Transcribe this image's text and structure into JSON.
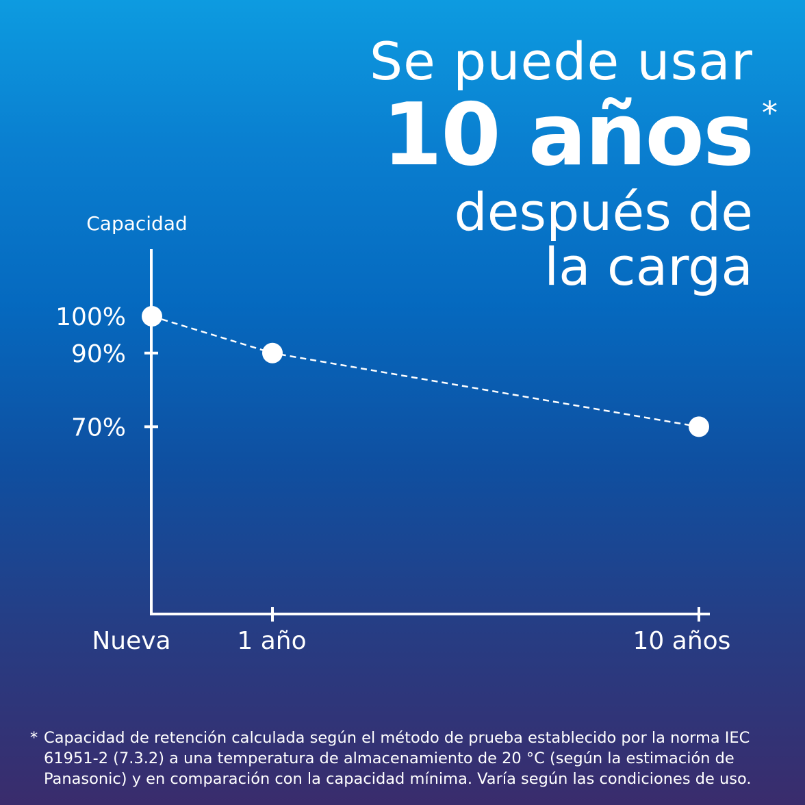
{
  "headline": {
    "line1": "Se puede usar",
    "line2": "10 años",
    "asterisk": "*",
    "line3": "después de",
    "line4": "la carga"
  },
  "chart_data": {
    "type": "line",
    "ylabel": "Capacidad",
    "categories": [
      "Nueva",
      "1 año",
      "10 años"
    ],
    "x": [
      0,
      1,
      10
    ],
    "values": [
      100,
      90,
      70
    ],
    "y_tick_labels": [
      "100%",
      "90%",
      "70%"
    ],
    "y_ticks": [
      100,
      90,
      70
    ],
    "line_style": "dashed",
    "marker": "circle",
    "colors": {
      "line": "#ffffff",
      "marker": "#ffffff"
    }
  },
  "footnote": {
    "star": "*",
    "text": "Capacidad de retención calculada según el método de prueba establecido por la norma IEC 61951-2 (7.3.2) a una temperatura de almacenamiento de 20 °C (según la estimación de Panasonic) y en comparación con la capacidad mínima. Varía según las condiciones de uso."
  }
}
